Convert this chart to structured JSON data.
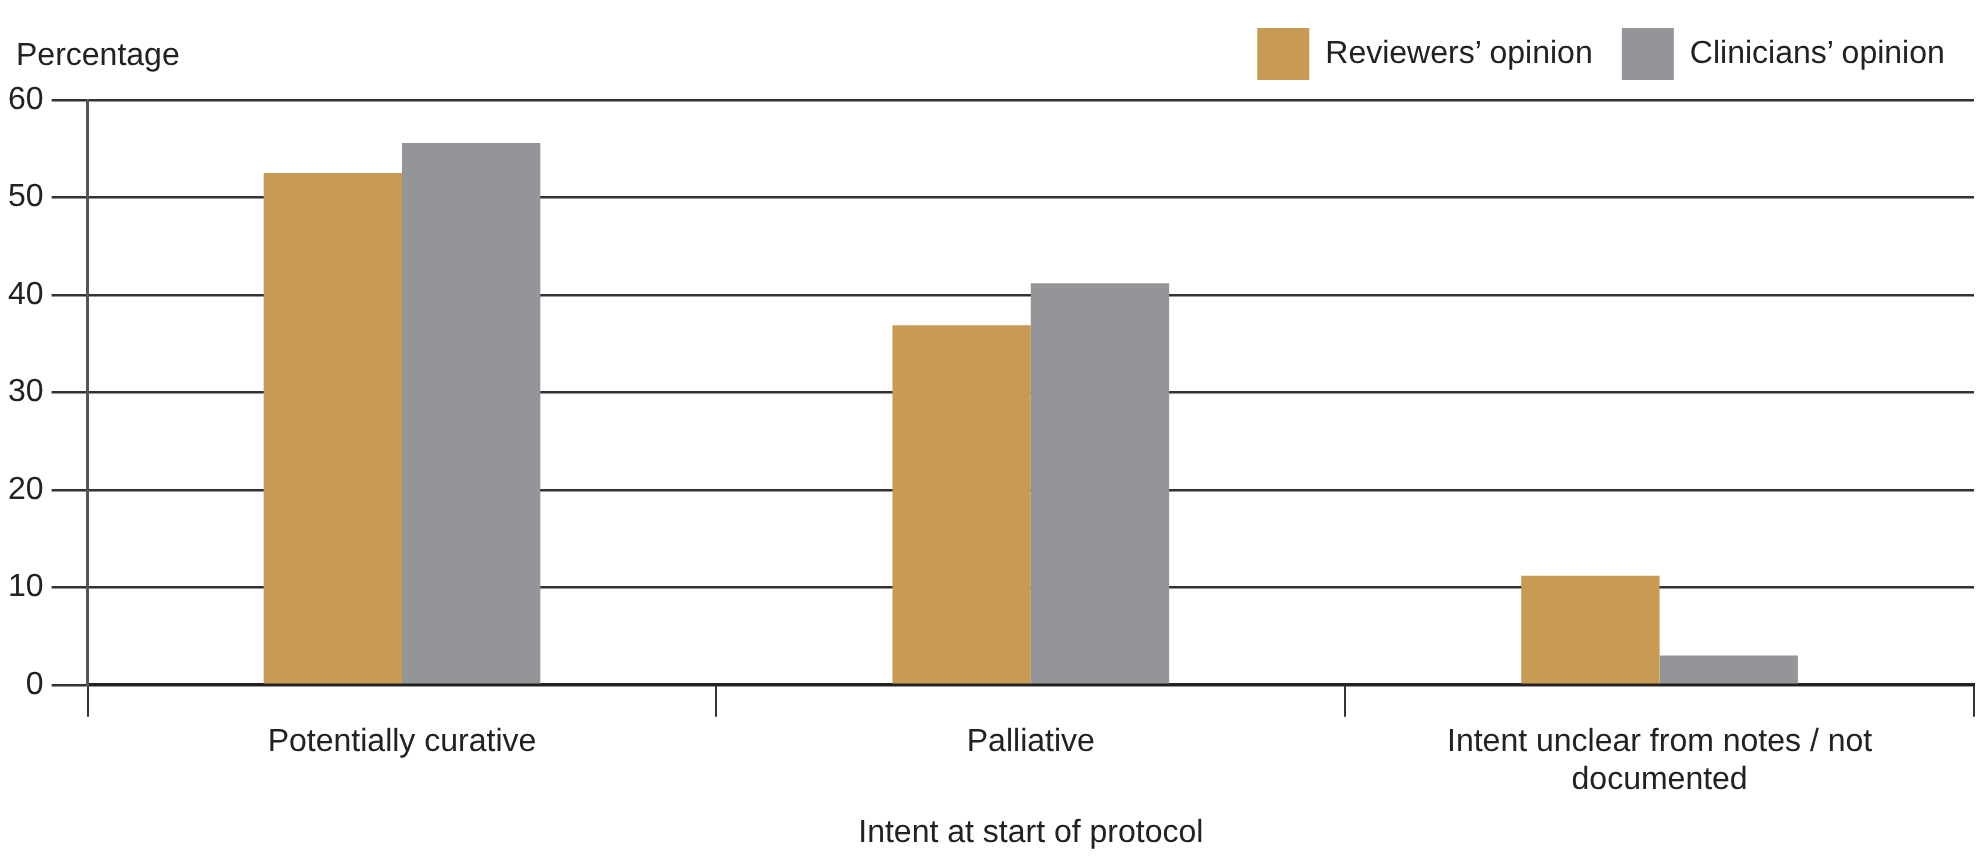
{
  "chart_data": {
    "type": "bar",
    "xlabel": "Intent at start of protocol",
    "ylabel": "Percentage",
    "categories": [
      "Potentially curative",
      "Palliative",
      "Intent unclear from notes / not documented"
    ],
    "series": [
      {
        "name": "Reviewers’ opinion",
        "color": "#c89b55",
        "values": [
          52.5,
          36.9,
          11.2
        ]
      },
      {
        "name": "Clinicians’ opinion",
        "color": "#949599",
        "values": [
          55.6,
          41.2,
          3.0
        ]
      }
    ],
    "ylim": [
      0,
      60
    ],
    "yticks": [
      0,
      10,
      20,
      30,
      40,
      50,
      60
    ],
    "grid": "y",
    "legend": "top right"
  }
}
